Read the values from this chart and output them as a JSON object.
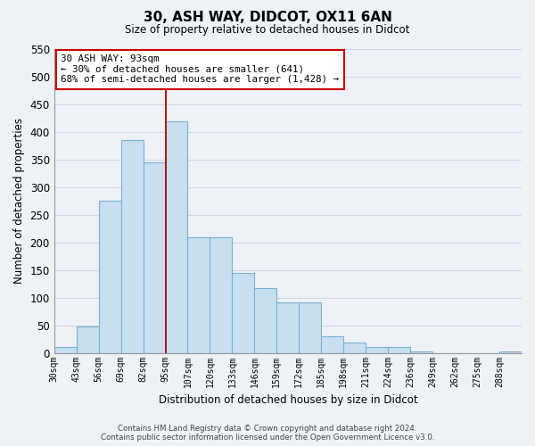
{
  "title": "30, ASH WAY, DIDCOT, OX11 6AN",
  "subtitle": "Size of property relative to detached houses in Didcot",
  "xlabel": "Distribution of detached houses by size in Didcot",
  "ylabel": "Number of detached properties",
  "categories": [
    "30sqm",
    "43sqm",
    "56sqm",
    "69sqm",
    "82sqm",
    "95sqm",
    "107sqm",
    "120sqm",
    "133sqm",
    "146sqm",
    "159sqm",
    "172sqm",
    "185sqm",
    "198sqm",
    "211sqm",
    "224sqm",
    "236sqm",
    "249sqm",
    "262sqm",
    "275sqm",
    "288sqm"
  ],
  "values": [
    10,
    48,
    275,
    385,
    345,
    420,
    210,
    210,
    145,
    118,
    92,
    92,
    30,
    18,
    10,
    10,
    2,
    0,
    0,
    0,
    2
  ],
  "bar_color": "#c8dff0",
  "bar_edge_color": "#7ab0d0",
  "property_line_color": "#bb0000",
  "annotation_text": "30 ASH WAY: 93sqm\n← 30% of detached houses are smaller (641)\n68% of semi-detached houses are larger (1,428) →",
  "annotation_box_color": "#ffffff",
  "annotation_box_edge_color": "#cc0000",
  "ylim": [
    0,
    550
  ],
  "yticks": [
    0,
    50,
    100,
    150,
    200,
    250,
    300,
    350,
    400,
    450,
    500,
    550
  ],
  "footer_line1": "Contains HM Land Registry data © Crown copyright and database right 2024.",
  "footer_line2": "Contains public sector information licensed under the Open Government Licence v3.0.",
  "bar_width": 1.0,
  "grid_color": "#cdd8e4",
  "background_color": "#eef2f7",
  "line_x_index": 5.0
}
